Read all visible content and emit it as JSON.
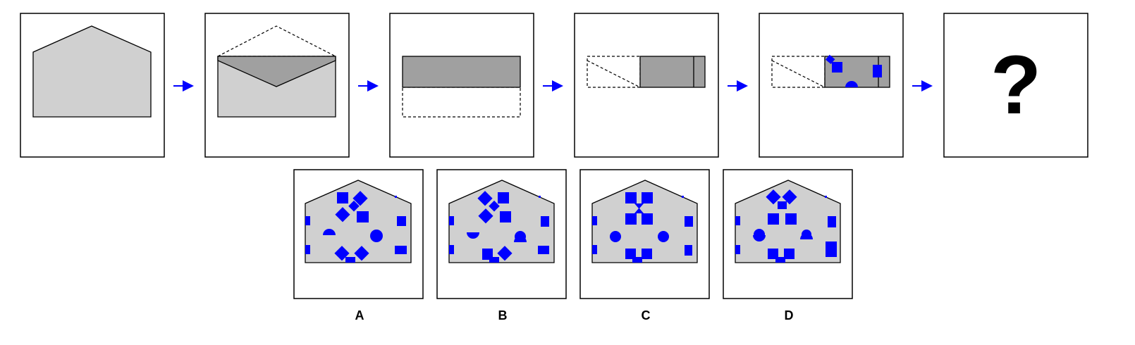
{
  "question_mark": "?",
  "options": [
    {
      "label": "A"
    },
    {
      "label": "B"
    },
    {
      "label": "C"
    },
    {
      "label": "D"
    }
  ],
  "colors": {
    "paper": "#d0d0d0",
    "flap": "#a0a0a0",
    "hole": "#0000ff",
    "arrow": "#0000ff",
    "outline": "#000000"
  }
}
